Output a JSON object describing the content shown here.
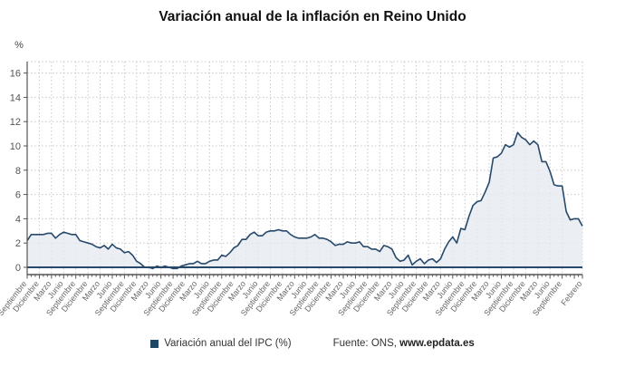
{
  "title": "Variación anual de la inflación en Reino Unido",
  "y_axis_unit_label": "%",
  "legend_label": "Variación anual del IPC (%)",
  "source_prefix": "Fuente: ONS, ",
  "source_site": "www.epdata.es",
  "colors": {
    "line": "#27496b",
    "zero_line": "#27496b",
    "area_fill": "#e6eaf0",
    "legend_swatch": "#1e4766",
    "grid": "#c9c9c9",
    "axis": "#555555",
    "y_tick_text": "#555555",
    "x_tick_text": "#666666",
    "title_text": "#111111"
  },
  "chart_data": {
    "type": "area",
    "title": "Variación anual de la inflación en Reino Unido",
    "ylabel": "%",
    "ylim": [
      -0.7,
      17
    ],
    "grid": true,
    "legend_position": "bottom",
    "y_ticks": [
      0,
      2,
      4,
      6,
      8,
      10,
      12,
      14,
      16
    ],
    "x_ticks": [
      {
        "m": 0,
        "label": "Septiembre"
      },
      {
        "m": 3,
        "label": "Diciembre"
      },
      {
        "m": 6,
        "label": "Marzo"
      },
      {
        "m": 9,
        "label": "Junio"
      },
      {
        "m": 12,
        "label": "Septiembre"
      },
      {
        "m": 15,
        "label": "Diciembre"
      },
      {
        "m": 18,
        "label": "Marzo"
      },
      {
        "m": 21,
        "label": "Junio"
      },
      {
        "m": 24,
        "label": "Septiembre"
      },
      {
        "m": 27,
        "label": "Diciembre"
      },
      {
        "m": 30,
        "label": "Marzo"
      },
      {
        "m": 33,
        "label": "Junio"
      },
      {
        "m": 36,
        "label": "Septiembre"
      },
      {
        "m": 39,
        "label": "Diciembre"
      },
      {
        "m": 42,
        "label": "Marzo"
      },
      {
        "m": 45,
        "label": "Junio"
      },
      {
        "m": 48,
        "label": "Septiembre"
      },
      {
        "m": 51,
        "label": "Diciembre"
      },
      {
        "m": 54,
        "label": "Marzo"
      },
      {
        "m": 57,
        "label": "Junio"
      },
      {
        "m": 60,
        "label": "Septiembre"
      },
      {
        "m": 63,
        "label": "Diciembre"
      },
      {
        "m": 66,
        "label": "Marzo"
      },
      {
        "m": 69,
        "label": "Junio"
      },
      {
        "m": 72,
        "label": "Septiembre"
      },
      {
        "m": 75,
        "label": "Diciembre"
      },
      {
        "m": 78,
        "label": "Marzo"
      },
      {
        "m": 81,
        "label": "Junio"
      },
      {
        "m": 84,
        "label": "Septiembre"
      },
      {
        "m": 87,
        "label": "Diciembre"
      },
      {
        "m": 90,
        "label": "Marzo"
      },
      {
        "m": 93,
        "label": "Junio"
      },
      {
        "m": 96,
        "label": "Septiembre"
      },
      {
        "m": 99,
        "label": "Diciembre"
      },
      {
        "m": 102,
        "label": "Marzo"
      },
      {
        "m": 105,
        "label": "Junio"
      },
      {
        "m": 108,
        "label": "Septiembre"
      },
      {
        "m": 111,
        "label": "Diciembre"
      },
      {
        "m": 114,
        "label": "Marzo"
      },
      {
        "m": 117,
        "label": "Junio"
      },
      {
        "m": 120,
        "label": "Septiembre"
      },
      {
        "m": 123,
        "label": "Diciembre"
      },
      {
        "m": 126,
        "label": "Marzo"
      },
      {
        "m": 129,
        "label": "Junio"
      },
      {
        "m": 132,
        "label": "Septiembre"
      },
      {
        "m": 137,
        "label": "Febrero"
      }
    ],
    "series": [
      {
        "name": "Variación anual del IPC (%)",
        "values": [
          2.2,
          2.7,
          2.7,
          2.7,
          2.7,
          2.8,
          2.8,
          2.4,
          2.7,
          2.9,
          2.8,
          2.7,
          2.7,
          2.2,
          2.1,
          2.0,
          1.9,
          1.7,
          1.6,
          1.8,
          1.5,
          1.9,
          1.6,
          1.5,
          1.2,
          1.3,
          1.0,
          0.5,
          0.3,
          0.0,
          0.0,
          -0.1,
          0.1,
          0.0,
          0.1,
          0.0,
          -0.1,
          -0.1,
          0.1,
          0.2,
          0.3,
          0.3,
          0.5,
          0.3,
          0.3,
          0.5,
          0.6,
          0.6,
          1.0,
          0.9,
          1.2,
          1.6,
          1.8,
          2.3,
          2.3,
          2.7,
          2.9,
          2.6,
          2.6,
          2.9,
          3.0,
          3.0,
          3.1,
          3.0,
          3.0,
          2.7,
          2.5,
          2.4,
          2.4,
          2.4,
          2.5,
          2.7,
          2.4,
          2.4,
          2.3,
          2.1,
          1.8,
          1.9,
          1.9,
          2.1,
          2.0,
          2.0,
          2.1,
          1.7,
          1.7,
          1.5,
          1.5,
          1.3,
          1.8,
          1.7,
          1.5,
          0.8,
          0.5,
          0.6,
          1.0,
          0.2,
          0.5,
          0.7,
          0.3,
          0.6,
          0.7,
          0.4,
          0.7,
          1.5,
          2.1,
          2.5,
          2.0,
          3.2,
          3.1,
          4.2,
          5.1,
          5.4,
          5.5,
          6.2,
          7.0,
          9.0,
          9.1,
          9.4,
          10.1,
          9.9,
          10.1,
          11.1,
          10.7,
          10.5,
          10.1,
          10.4,
          10.1,
          8.7,
          8.7,
          7.9,
          6.8,
          6.7,
          6.7,
          4.6,
          3.9,
          4.0,
          4.0,
          3.4
        ]
      }
    ]
  }
}
